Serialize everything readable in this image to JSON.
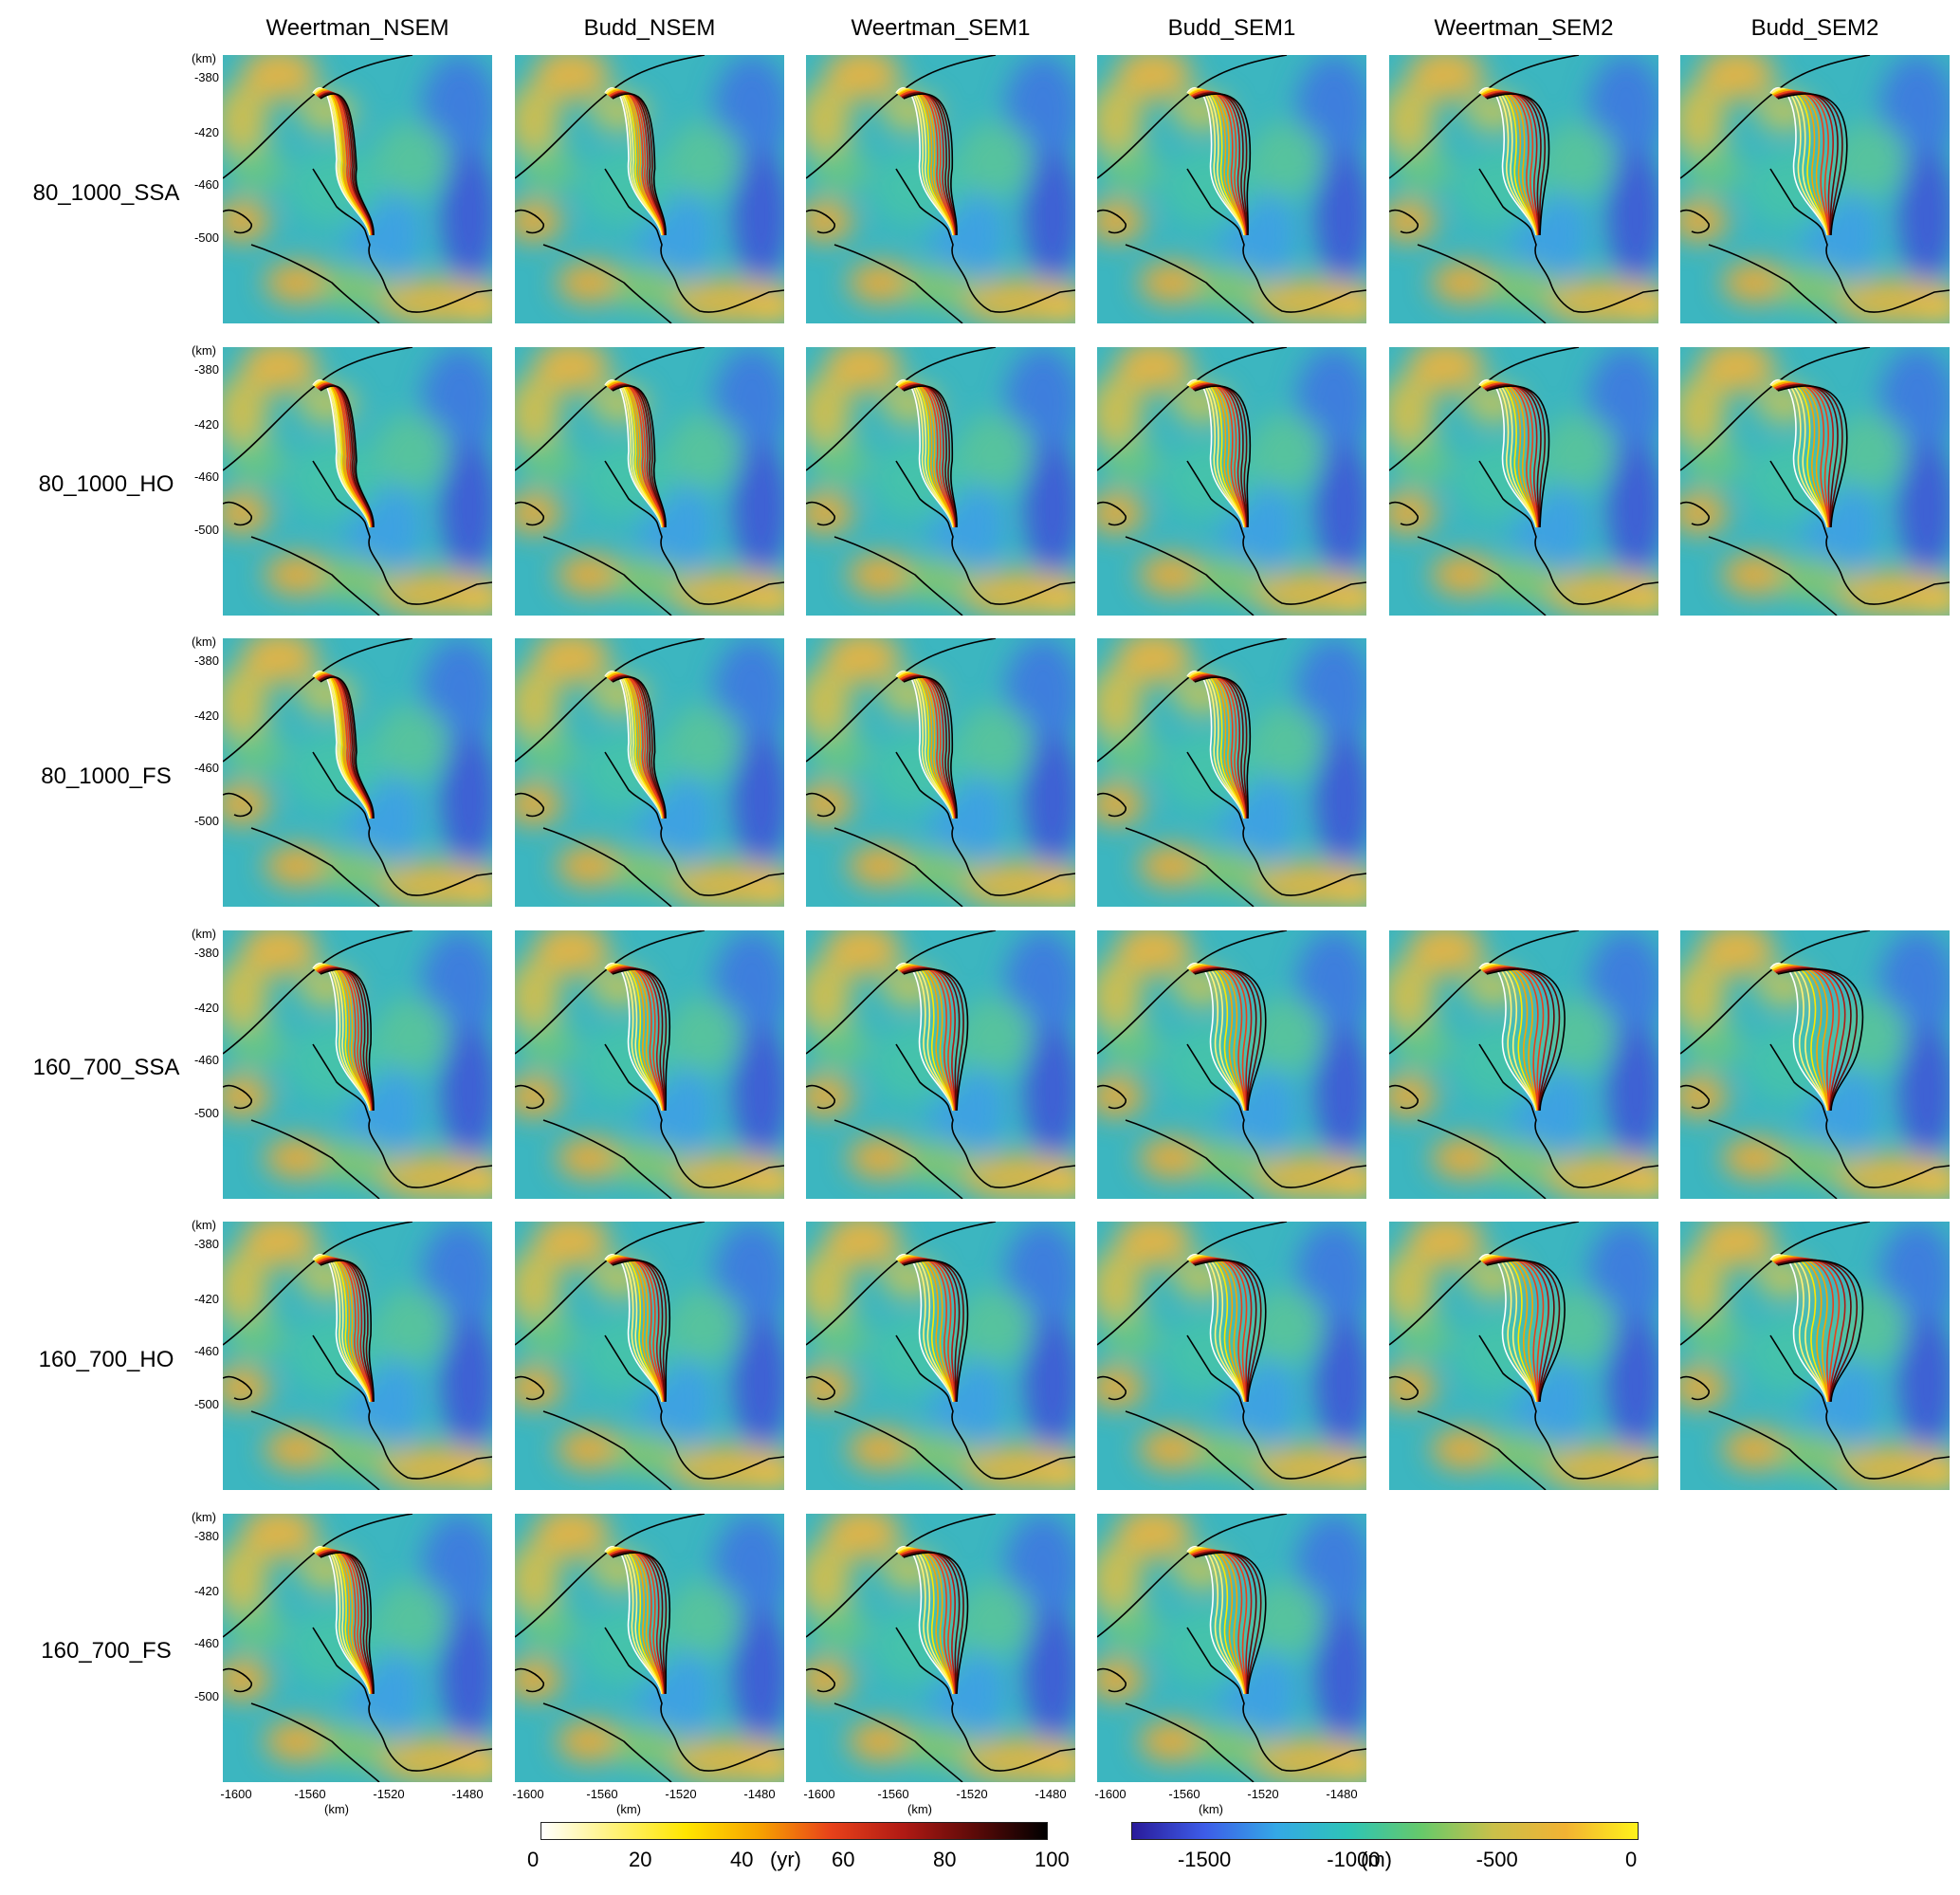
{
  "columns": [
    "Weertman_NSEM",
    "Budd_NSEM",
    "Weertman_SEM1",
    "Budd_SEM1",
    "Weertman_SEM2",
    "Budd_SEM2"
  ],
  "rows": [
    {
      "label": "80_1000_SSA",
      "panels": [
        1,
        1,
        1,
        1,
        1,
        1
      ]
    },
    {
      "label": "80_1000_HO",
      "panels": [
        1,
        1,
        1,
        1,
        1,
        1
      ]
    },
    {
      "label": "80_1000_FS",
      "panels": [
        1,
        1,
        1,
        1,
        0,
        0
      ]
    },
    {
      "label": "160_700_SSA",
      "panels": [
        1,
        1,
        1,
        1,
        1,
        1
      ]
    },
    {
      "label": "160_700_HO",
      "panels": [
        1,
        1,
        1,
        1,
        1,
        1
      ]
    },
    {
      "label": "160_700_FS",
      "panels": [
        1,
        1,
        1,
        1,
        0,
        0
      ]
    }
  ],
  "y_axis": {
    "unit": "(km)",
    "ticks": [
      "-380",
      "-420",
      "-460",
      "-500"
    ]
  },
  "x_axis": {
    "unit": "(km)",
    "ticks": [
      "-1600",
      "-1560",
      "-1520",
      "-1480"
    ]
  },
  "colorbar_time": {
    "unit": "(yr)",
    "ticks": [
      "0",
      "20",
      "40",
      "60",
      "80",
      "100"
    ],
    "range": [
      0,
      100
    ],
    "colors": [
      "#ffffff",
      "#fff27a",
      "#ffe600",
      "#f7a400",
      "#e8421a",
      "#b11a14",
      "#5c0a08",
      "#000000"
    ]
  },
  "colorbar_bed": {
    "unit": "(m)",
    "ticks": [
      "-1500",
      "-1000",
      "-500",
      "0"
    ],
    "range": [
      -1700,
      0
    ],
    "colors": [
      "#2a1b9a",
      "#3d5ce8",
      "#34a8e6",
      "#2ec4b6",
      "#66c96a",
      "#c9c04a",
      "#f2b233",
      "#fff21a"
    ]
  },
  "chart_data": {
    "type": "heatmap",
    "description_units": {
      "x": "km",
      "y": "km",
      "bed": "m",
      "time": "yr"
    },
    "panel_grid": {
      "n_rows": 6,
      "n_cols": 6,
      "missing_panels": [
        "80_1000_FS / Weertman_SEM2",
        "80_1000_FS / Budd_SEM2",
        "160_700_FS / Weertman_SEM2",
        "160_700_FS / Budd_SEM2"
      ]
    },
    "xlim": [
      -1620,
      -1450
    ],
    "ylim": [
      -512,
      -362
    ],
    "bed_range": [
      -1700,
      0
    ],
    "time_range": [
      0,
      100
    ]
  }
}
